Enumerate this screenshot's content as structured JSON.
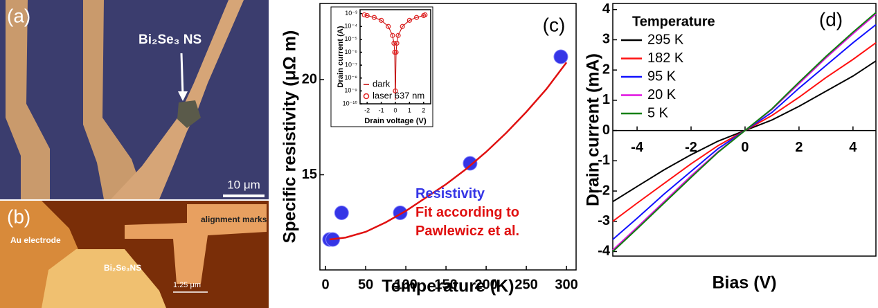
{
  "images": [
    {
      "label": "(a)",
      "annotation": "Bi₂Se₃ NS",
      "scale_bar": "10 μm"
    },
    {
      "label": "(b)",
      "annotations": [
        "alignment marks",
        "Au electrode",
        "Bi₂Se₃NS"
      ],
      "scale_bar": "1.25 μm"
    }
  ],
  "chart_data": [
    {
      "type": "scatter",
      "panel_label": "(c)",
      "xlabel": "Temperature (K)",
      "ylabel": "Specific resistivity (μΩ m)",
      "xlim": [
        -7,
        312
      ],
      "ylim": [
        10,
        24
      ],
      "xticks": [
        0,
        50,
        100,
        150,
        200,
        250,
        300
      ],
      "yticks": [
        15,
        20
      ],
      "series": [
        {
          "name": "Resistivity",
          "color": "#3535e6",
          "style": "marker",
          "x": [
            5,
            9,
            20,
            93,
            180,
            293
          ],
          "values": [
            11.6,
            11.6,
            13.0,
            13.0,
            15.6,
            21.2
          ]
        },
        {
          "name": "Fit according to Pawlewicz et al.",
          "color": "#e01010",
          "style": "line",
          "x": [
            5,
            25,
            50,
            75,
            100,
            125,
            150,
            175,
            200,
            225,
            250,
            275,
            300
          ],
          "values": [
            11.6,
            11.7,
            12.0,
            12.5,
            13.1,
            13.8,
            14.5,
            15.3,
            16.2,
            17.2,
            18.3,
            19.5,
            20.9
          ]
        }
      ]
    },
    {
      "type": "line",
      "xlabel": "Drain voltage (V)",
      "ylabel": "Drain current (A)",
      "log_y": true,
      "xlim": [
        -2.5,
        2.5
      ],
      "ylim": [
        1e-10,
        0.002
      ],
      "xticks": [
        -2,
        -1,
        0,
        1,
        2
      ],
      "yticks": [
        {
          "value": 1e-10,
          "label": "10⁻¹⁰"
        },
        {
          "value": 1e-09,
          "label": "10⁻⁹"
        },
        {
          "value": 1e-08,
          "label": "10⁻⁸"
        },
        {
          "value": 1e-07,
          "label": "10⁻⁷"
        },
        {
          "value": 1e-06,
          "label": "10⁻⁶"
        },
        {
          "value": 1e-05,
          "label": "10⁻⁵"
        },
        {
          "value": 0.0001,
          "label": "10⁻⁴"
        },
        {
          "value": 0.001,
          "label": "10⁻³"
        }
      ],
      "x": [
        -2.2,
        -2,
        -1.5,
        -1,
        -0.5,
        -0.2,
        -0.1,
        -0.05,
        0,
        0.05,
        0.1,
        0.2,
        0.5,
        1,
        1.5,
        2,
        2.1
      ],
      "legend": "lower left",
      "series": [
        {
          "name": "dark",
          "color": "#c00000",
          "style": "line",
          "values": [
            0.0008,
            0.0007,
            0.0005,
            0.0003,
            0.0001,
            2e-05,
            5e-06,
            1e-06,
            2e-10,
            1e-06,
            5e-06,
            2e-05,
            0.0001,
            0.0003,
            0.0005,
            0.0007,
            0.0008
          ]
        },
        {
          "name": "laser 637 nm",
          "color": "#e02020",
          "style": "marker",
          "values": [
            0.0008,
            0.0007,
            0.0005,
            0.0003,
            0.0001,
            2e-05,
            5e-06,
            1e-06,
            1e-09,
            1e-06,
            5e-06,
            2e-05,
            0.0001,
            0.0003,
            0.0005,
            0.0007,
            0.0008
          ]
        }
      ]
    },
    {
      "type": "line",
      "panel_label": "(d)",
      "xlabel": "Bias (V)",
      "ylabel": "Drain current (mA)",
      "legend_title": "Temperature",
      "legend": "upper left",
      "x_axis_at_zero": true,
      "xlim": [
        -4.9,
        4.85
      ],
      "ylim": [
        -4.15,
        4.2
      ],
      "xticks": [
        -4,
        -2,
        0,
        2,
        4
      ],
      "yticks": [
        -4,
        -3,
        -2,
        -1,
        0,
        1,
        2,
        3,
        4
      ],
      "x": [
        -4.9,
        -4,
        -3,
        -2,
        -1,
        0,
        1,
        2,
        3,
        4,
        4.85
      ],
      "series": [
        {
          "name": "295 K",
          "color": "#000000",
          "style": "line",
          "values": [
            -2.35,
            -1.85,
            -1.3,
            -0.8,
            -0.35,
            0,
            0.35,
            0.8,
            1.3,
            1.8,
            2.3
          ]
        },
        {
          "name": "182 K",
          "color": "#ff1010",
          "style": "line",
          "values": [
            -3.0,
            -2.4,
            -1.75,
            -1.1,
            -0.5,
            0,
            0.5,
            1.1,
            1.75,
            2.35,
            2.9
          ]
        },
        {
          "name": "95 K",
          "color": "#1010ff",
          "style": "line",
          "values": [
            -3.6,
            -2.9,
            -2.1,
            -1.35,
            -0.6,
            0,
            0.6,
            1.4,
            2.15,
            2.9,
            3.5
          ]
        },
        {
          "name": "20 K",
          "color": "#e010e0",
          "style": "line",
          "values": [
            -3.95,
            -3.2,
            -2.35,
            -1.5,
            -0.7,
            0,
            0.7,
            1.55,
            2.4,
            3.2,
            3.85
          ]
        },
        {
          "name": "5 K",
          "color": "#108010",
          "style": "line",
          "values": [
            -4.0,
            -3.25,
            -2.4,
            -1.55,
            -0.72,
            0,
            0.72,
            1.6,
            2.45,
            3.25,
            3.9
          ]
        }
      ]
    }
  ]
}
